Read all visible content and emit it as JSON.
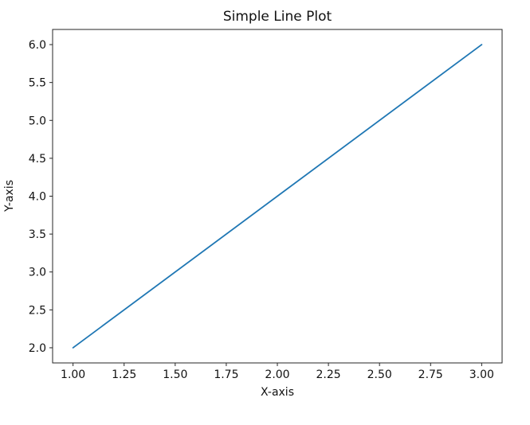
{
  "figure": {
    "title": "Simple Line Plot",
    "xlabel": "X-axis",
    "ylabel": "Y-axis"
  },
  "chart_data": {
    "type": "line",
    "title": "Simple Line Plot",
    "xlabel": "X-axis",
    "ylabel": "Y-axis",
    "x": [
      1,
      2,
      3
    ],
    "y": [
      2,
      4,
      6
    ],
    "xlim": [
      0.9,
      3.1
    ],
    "ylim": [
      1.8,
      6.2
    ],
    "xtick_labels": [
      "1.00",
      "1.25",
      "1.50",
      "1.75",
      "2.00",
      "2.25",
      "2.50",
      "2.75",
      "3.00"
    ],
    "ytick_labels": [
      "2.0",
      "2.5",
      "3.0",
      "3.5",
      "4.0",
      "4.5",
      "5.0",
      "5.5",
      "6.0"
    ],
    "grid": false,
    "legend": null,
    "line_color": "#1f77b4",
    "marker": "none"
  },
  "colors": {
    "background": "#ffffff",
    "spine": "#262626",
    "tick": "#262626",
    "text": "#111111",
    "line": "#1f77b4"
  }
}
